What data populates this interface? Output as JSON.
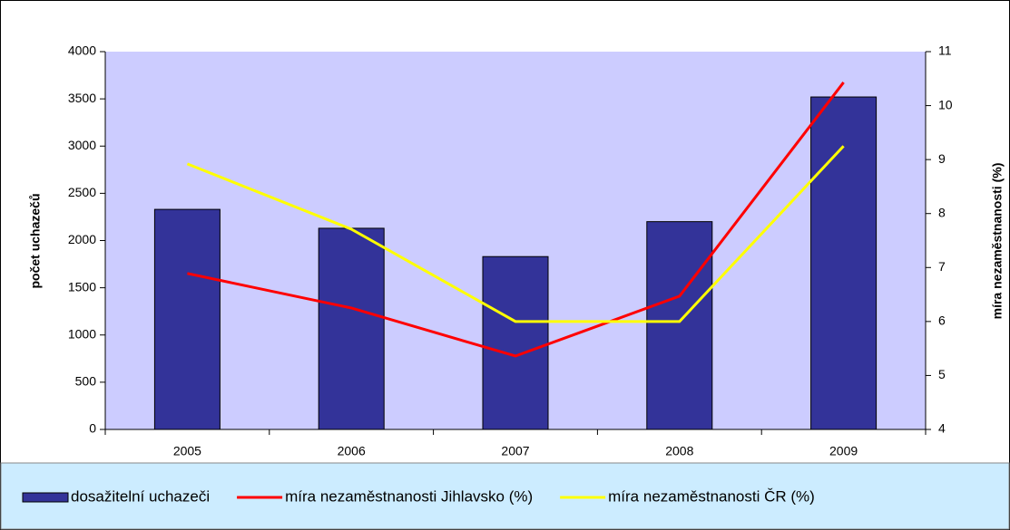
{
  "chart_data": {
    "type": "bar-line",
    "categories": [
      "2005",
      "2006",
      "2007",
      "2008",
      "2009"
    ],
    "series": [
      {
        "name": "dosažitelní uchazeči",
        "type": "bar",
        "color": "#333399",
        "values": [
          2330,
          2130,
          1830,
          2200,
          3520
        ]
      },
      {
        "name": "míra nezaměstnanosti Jihlavsko (%)",
        "type": "line",
        "axis": "y2",
        "color": "#ff0000",
        "values": [
          6.89,
          6.25,
          5.36,
          6.47,
          10.43
        ]
      },
      {
        "name": "míra nezaměstnanosti ČR (%)",
        "type": "line",
        "axis": "y2",
        "color": "#ffff00",
        "values": [
          8.92,
          7.71,
          6.0,
          6.0,
          9.25
        ]
      }
    ],
    "y_label": "počet uchazečů",
    "y2_label": "míra nezaměstnanosti (%)",
    "ylim": [
      0,
      4000
    ],
    "yticks": [
      0,
      500,
      1000,
      1500,
      2000,
      2500,
      3000,
      3500,
      4000
    ],
    "y2lim": [
      4,
      11
    ],
    "y2ticks": [
      4,
      5,
      6,
      7,
      8,
      9,
      10,
      11
    ],
    "legend": "bottom"
  }
}
